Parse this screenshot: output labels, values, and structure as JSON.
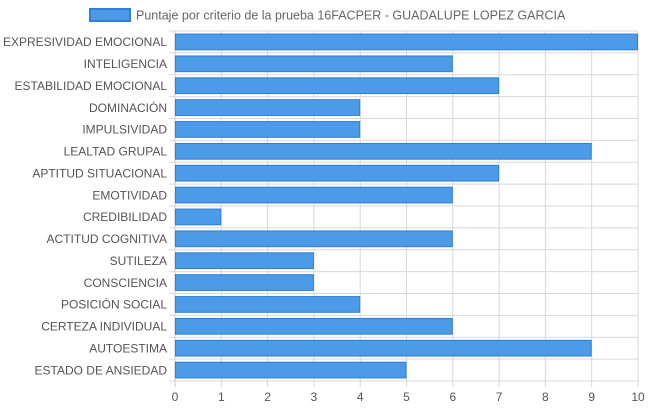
{
  "chart_data": {
    "type": "bar",
    "orientation": "horizontal",
    "categories": [
      "EXPRESIVIDAD EMOCIONAL",
      "INTELIGENCIA",
      "ESTABILIDAD EMOCIONAL",
      "DOMINACIÓN",
      "IMPULSIVIDAD",
      "LEALTAD GRUPAL",
      "APTITUD SITUACIONAL",
      "EMOTIVIDAD",
      "CREDIBILIDAD",
      "ACTITUD COGNITIVA",
      "SUTILEZA",
      "CONSCIENCIA",
      "POSICIÓN SOCIAL",
      "CERTEZA INDIVIDUAL",
      "AUTOESTIMA",
      "ESTADO DE ANSIEDAD"
    ],
    "series": [
      {
        "name": "Puntaje por criterio de la prueba 16FACPER - GUADALUPE LOPEZ GARCIA",
        "values": [
          10,
          6,
          7,
          4,
          4,
          9,
          7,
          6,
          1,
          6,
          3,
          3,
          4,
          6,
          9,
          5
        ]
      }
    ],
    "xlim": [
      0,
      10
    ],
    "x_ticks": [
      "0",
      "1",
      "2",
      "3",
      "4",
      "5",
      "6",
      "7",
      "8",
      "9",
      "10"
    ],
    "grid": true,
    "legend_position": "top",
    "colors": {
      "bar_fill": "#4b9be8",
      "bar_stroke": "#2f7fd6",
      "grid": "#d9d9d9",
      "axis_text": "#555555"
    }
  }
}
